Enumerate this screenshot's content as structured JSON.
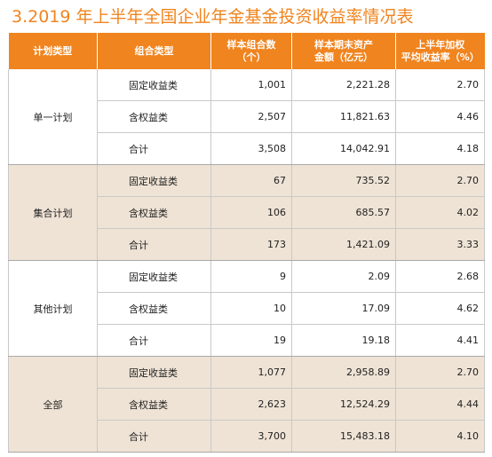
{
  "title": "3.2019 年上半年全国企业年金基金投资收益率情况表",
  "colors": {
    "accent": "#f0841f",
    "shade": "#efe3d5"
  },
  "headers": {
    "plan_type": "计划类型",
    "portfolio_type": "组合类型",
    "sample_count_line1": "样本组合数",
    "sample_count_line2": "（个）",
    "assets_line1": "样本期末资产",
    "assets_line2": "金额（亿元）",
    "return_line1": "上半年加权",
    "return_line2": "平均收益率（%）"
  },
  "groups": [
    {
      "name": "单一计划",
      "rows": [
        {
          "type": "固定收益类",
          "count": "1,001",
          "assets": "2,221.28",
          "return": "2.70"
        },
        {
          "type": "含权益类",
          "count": "2,507",
          "assets": "11,821.63",
          "return": "4.46"
        },
        {
          "type": "合计",
          "count": "3,508",
          "assets": "14,042.91",
          "return": "4.18"
        }
      ]
    },
    {
      "name": "集合计划",
      "rows": [
        {
          "type": "固定收益类",
          "count": "67",
          "assets": "735.52",
          "return": "2.70"
        },
        {
          "type": "含权益类",
          "count": "106",
          "assets": "685.57",
          "return": "4.02"
        },
        {
          "type": "合计",
          "count": "173",
          "assets": "1,421.09",
          "return": "3.33"
        }
      ]
    },
    {
      "name": "其他计划",
      "rows": [
        {
          "type": "固定收益类",
          "count": "9",
          "assets": "2.09",
          "return": "2.68"
        },
        {
          "type": "含权益类",
          "count": "10",
          "assets": "17.09",
          "return": "4.62"
        },
        {
          "type": "合计",
          "count": "19",
          "assets": "19.18",
          "return": "4.41"
        }
      ]
    },
    {
      "name": "全部",
      "rows": [
        {
          "type": "固定收益类",
          "count": "1,077",
          "assets": "2,958.89",
          "return": "2.70"
        },
        {
          "type": "含权益类",
          "count": "2,623",
          "assets": "12,524.29",
          "return": "4.44"
        },
        {
          "type": "合计",
          "count": "3,700",
          "assets": "15,483.18",
          "return": "4.10"
        }
      ]
    }
  ]
}
